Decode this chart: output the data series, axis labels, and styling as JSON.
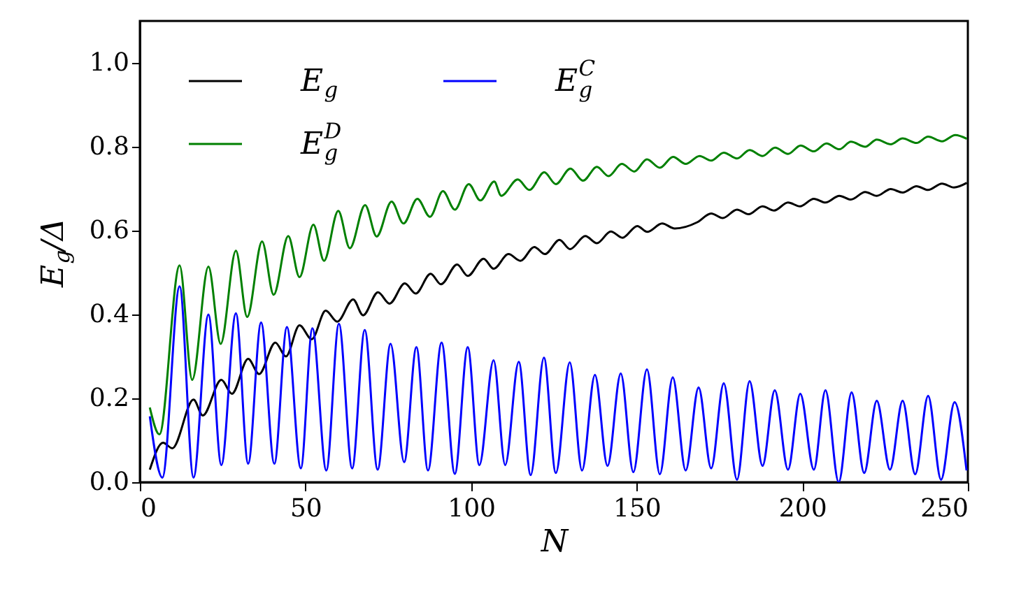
{
  "chart_data": {
    "type": "line",
    "xlabel": "N",
    "ylabel": "E$_{g}$/Δ",
    "xlim": [
      0,
      250
    ],
    "ylim": [
      0,
      1.1
    ],
    "xticks": [
      0,
      50,
      100,
      150,
      200,
      250
    ],
    "yticks": [
      {
        "value": 0,
        "label": "0.0"
      },
      {
        "value": 0.2,
        "label": "0.2"
      },
      {
        "value": 0.4,
        "label": "0.4"
      },
      {
        "value": 0.6,
        "label": "0.6"
      },
      {
        "value": 0.8,
        "label": "0.8"
      },
      {
        "value": 1.0,
        "label": "1.0"
      }
    ],
    "grid": false,
    "legend": "top left",
    "marker": "none",
    "line_style": "solid",
    "series": [
      {
        "name": "E$_{g}$",
        "color": "#000000",
        "x": [
          3,
          7.0,
          9.8,
          16.2,
          19.0,
          24.6,
          27.8,
          32.7,
          36.0,
          40.9,
          44.1,
          48.2,
          51.9,
          56.1,
          59.6,
          64.4,
          67.4,
          71.9,
          75.4,
          80.0,
          83.3,
          87.8,
          90.9,
          95.8,
          99.0,
          103.8,
          106.8,
          111.3,
          114.9,
          119.1,
          122.3,
          126.7,
          129.9,
          134.5,
          138.0,
          142.2,
          145.7,
          150.2,
          153.2,
          157.7,
          161.5,
          168.3,
          172.5,
          176.0,
          180.3,
          183.8,
          188.0,
          191.5,
          195.7,
          199.3,
          203.5,
          207.0,
          211.2,
          214.7,
          219.0,
          222.5,
          226.7,
          230.3,
          234.5,
          238.0,
          242.2,
          245.8,
          249.7
        ],
        "values": [
          0.03,
          0.094,
          0.081,
          0.197,
          0.159,
          0.244,
          0.211,
          0.294,
          0.258,
          0.333,
          0.3,
          0.374,
          0.341,
          0.409,
          0.383,
          0.436,
          0.398,
          0.453,
          0.426,
          0.474,
          0.45,
          0.497,
          0.472,
          0.519,
          0.492,
          0.533,
          0.509,
          0.544,
          0.528,
          0.561,
          0.544,
          0.578,
          0.556,
          0.587,
          0.57,
          0.598,
          0.583,
          0.611,
          0.597,
          0.617,
          0.605,
          0.62,
          0.641,
          0.63,
          0.65,
          0.639,
          0.658,
          0.648,
          0.667,
          0.658,
          0.676,
          0.667,
          0.683,
          0.674,
          0.692,
          0.683,
          0.699,
          0.691,
          0.706,
          0.697,
          0.712,
          0.703,
          0.714
        ]
      },
      {
        "name": "E$_{g}$$^{C}$",
        "color": "#0000ff",
        "x": [
          3,
          6.8,
          12.0,
          16.2,
          20.7,
          24.6,
          29.0,
          32.7,
          36.6,
          40.6,
          44.4,
          48.6,
          52.1,
          56.3,
          60.1,
          64.1,
          67.9,
          71.8,
          75.7,
          79.8,
          83.5,
          87.0,
          91.1,
          95.1,
          99.0,
          102.5,
          106.8,
          110.3,
          114.4,
          118.0,
          122.0,
          125.6,
          129.8,
          133.5,
          137.4,
          141.2,
          145.2,
          149.0,
          153.1,
          157.0,
          160.9,
          164.8,
          168.7,
          172.5,
          176.3,
          180.3,
          184.1,
          188.0,
          191.7,
          195.7,
          199.4,
          203.5,
          207.0,
          211.0,
          214.9,
          218.7,
          222.5,
          226.5,
          230.3,
          234.1,
          238.0,
          241.9,
          246.0,
          249.6
        ],
        "values": [
          0.157,
          0.011,
          0.467,
          0.011,
          0.4,
          0.041,
          0.403,
          0.044,
          0.381,
          0.044,
          0.37,
          0.033,
          0.367,
          0.028,
          0.378,
          0.033,
          0.363,
          0.03,
          0.33,
          0.048,
          0.322,
          0.028,
          0.333,
          0.02,
          0.322,
          0.041,
          0.291,
          0.041,
          0.287,
          0.017,
          0.297,
          0.022,
          0.286,
          0.028,
          0.256,
          0.039,
          0.259,
          0.024,
          0.269,
          0.019,
          0.25,
          0.028,
          0.226,
          0.033,
          0.236,
          0.006,
          0.241,
          0.039,
          0.219,
          0.03,
          0.211,
          0.03,
          0.219,
          0.0,
          0.214,
          0.022,
          0.194,
          0.03,
          0.194,
          0.019,
          0.206,
          0.006,
          0.191,
          0.028
        ]
      },
      {
        "name": "E$_{g}$$^{D}$",
        "color": "#008000",
        "x": [
          3,
          5.9,
          12.0,
          15.8,
          20.7,
          24.4,
          29.0,
          32.4,
          36.9,
          40.4,
          44.8,
          48.2,
          52.4,
          55.6,
          59.9,
          63.4,
          68.0,
          71.5,
          76.0,
          79.6,
          83.8,
          87.6,
          91.5,
          95.1,
          99.3,
          102.8,
          107.0,
          109.1,
          114.1,
          117.6,
          122.1,
          125.6,
          130.0,
          133.8,
          138.0,
          141.5,
          145.5,
          149.3,
          153.1,
          157.0,
          161.0,
          164.8,
          169.0,
          172.5,
          176.3,
          180.3,
          184.1,
          188.0,
          191.8,
          195.7,
          199.5,
          203.5,
          207.3,
          211.2,
          214.7,
          219.0,
          222.5,
          226.7,
          230.3,
          234.5,
          238.0,
          242.2,
          246.2,
          249.7
        ],
        "values": [
          0.178,
          0.114,
          0.517,
          0.244,
          0.514,
          0.33,
          0.552,
          0.394,
          0.574,
          0.447,
          0.587,
          0.489,
          0.614,
          0.528,
          0.647,
          0.558,
          0.661,
          0.586,
          0.669,
          0.617,
          0.676,
          0.633,
          0.694,
          0.65,
          0.711,
          0.672,
          0.717,
          0.683,
          0.722,
          0.697,
          0.739,
          0.711,
          0.748,
          0.719,
          0.752,
          0.73,
          0.759,
          0.741,
          0.77,
          0.75,
          0.776,
          0.759,
          0.778,
          0.767,
          0.786,
          0.772,
          0.792,
          0.778,
          0.798,
          0.783,
          0.803,
          0.789,
          0.808,
          0.794,
          0.812,
          0.8,
          0.817,
          0.806,
          0.82,
          0.809,
          0.824,
          0.813,
          0.828,
          0.819
        ]
      }
    ]
  }
}
